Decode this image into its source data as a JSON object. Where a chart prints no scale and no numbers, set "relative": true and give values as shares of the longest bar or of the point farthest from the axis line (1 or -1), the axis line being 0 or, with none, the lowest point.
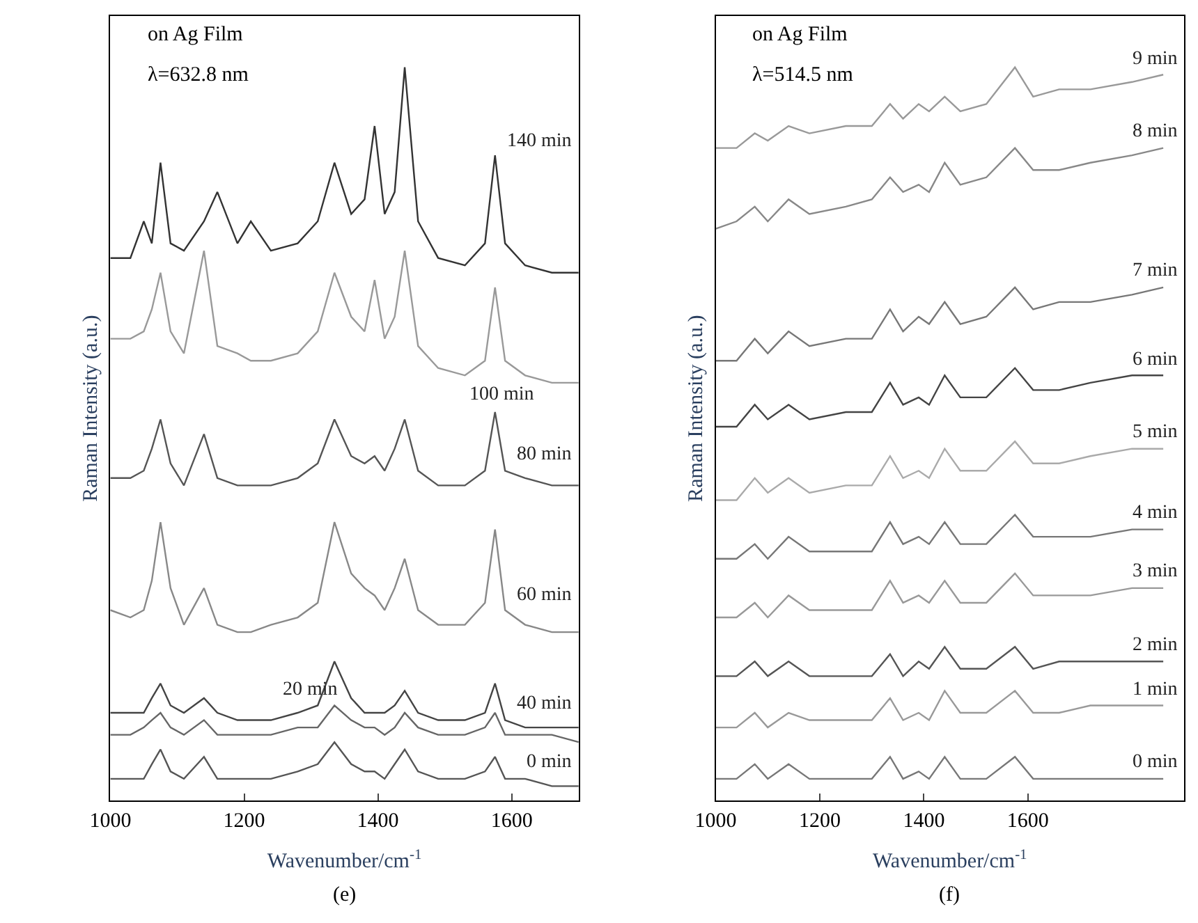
{
  "chart_data": [
    {
      "type": "line",
      "relative": true,
      "xlabel": "Wavenumber/cm$^{-1}$",
      "ylabel": "Raman Intensity (a.u.)",
      "annotations": [
        "on Ag Film",
        "λ=632.8 nm",
        "(e)"
      ],
      "xlim": [
        1000,
        1700
      ],
      "xticks": [
        1000,
        1200,
        1400,
        1600
      ],
      "legend": false,
      "marker": "none",
      "line_style": "solid",
      "x": [
        1000,
        1030,
        1050,
        1062,
        1075,
        1090,
        1110,
        1140,
        1160,
        1190,
        1210,
        1240,
        1280,
        1310,
        1335,
        1360,
        1380,
        1395,
        1410,
        1425,
        1440,
        1460,
        1490,
        1530,
        1560,
        1575,
        1590,
        1620,
        1660,
        1700
      ],
      "series": [
        {
          "name": "0 min",
          "color": "#555555",
          "values": [
            0.03,
            0.03,
            0.03,
            0.05,
            0.07,
            0.04,
            0.03,
            0.06,
            0.03,
            0.03,
            0.03,
            0.03,
            0.04,
            0.05,
            0.08,
            0.05,
            0.04,
            0.04,
            0.03,
            0.05,
            0.07,
            0.04,
            0.03,
            0.03,
            0.04,
            0.06,
            0.03,
            0.03,
            0.02,
            0.02
          ]
        },
        {
          "name": "20 min",
          "color": "#666666",
          "values": [
            0.09,
            0.09,
            0.1,
            0.11,
            0.12,
            0.1,
            0.09,
            0.11,
            0.09,
            0.09,
            0.09,
            0.09,
            0.1,
            0.1,
            0.13,
            0.11,
            0.1,
            0.1,
            0.09,
            0.1,
            0.12,
            0.1,
            0.09,
            0.09,
            0.1,
            0.12,
            0.09,
            0.09,
            0.09,
            0.08
          ]
        },
        {
          "name": "40 min",
          "color": "#444444",
          "values": [
            0.12,
            0.12,
            0.12,
            0.14,
            0.16,
            0.13,
            0.12,
            0.14,
            0.12,
            0.11,
            0.11,
            0.11,
            0.12,
            0.13,
            0.19,
            0.14,
            0.12,
            0.12,
            0.12,
            0.13,
            0.15,
            0.12,
            0.11,
            0.11,
            0.12,
            0.16,
            0.11,
            0.1,
            0.1,
            0.1
          ]
        },
        {
          "name": "60 min",
          "color": "#888888",
          "values": [
            0.26,
            0.25,
            0.26,
            0.3,
            0.38,
            0.29,
            0.24,
            0.29,
            0.24,
            0.23,
            0.23,
            0.24,
            0.25,
            0.27,
            0.38,
            0.31,
            0.29,
            0.28,
            0.26,
            0.29,
            0.33,
            0.26,
            0.24,
            0.24,
            0.27,
            0.37,
            0.26,
            0.24,
            0.23,
            0.23
          ]
        },
        {
          "name": "80 min",
          "color": "#555555",
          "values": [
            0.44,
            0.44,
            0.45,
            0.48,
            0.52,
            0.46,
            0.43,
            0.5,
            0.44,
            0.43,
            0.43,
            0.43,
            0.44,
            0.46,
            0.52,
            0.47,
            0.46,
            0.47,
            0.45,
            0.48,
            0.52,
            0.45,
            0.43,
            0.43,
            0.45,
            0.53,
            0.45,
            0.44,
            0.43,
            0.43
          ]
        },
        {
          "name": "100 min",
          "color": "#999999",
          "values": [
            0.63,
            0.63,
            0.64,
            0.67,
            0.72,
            0.64,
            0.61,
            0.75,
            0.62,
            0.61,
            0.6,
            0.6,
            0.61,
            0.64,
            0.72,
            0.66,
            0.64,
            0.71,
            0.63,
            0.66,
            0.75,
            0.62,
            0.59,
            0.58,
            0.6,
            0.7,
            0.6,
            0.58,
            0.57,
            0.57
          ]
        },
        {
          "name": "140 min",
          "color": "#333333",
          "values": [
            0.74,
            0.74,
            0.79,
            0.76,
            0.87,
            0.76,
            0.75,
            0.79,
            0.83,
            0.76,
            0.79,
            0.75,
            0.76,
            0.79,
            0.87,
            0.8,
            0.82,
            0.92,
            0.8,
            0.83,
            1.0,
            0.79,
            0.74,
            0.73,
            0.76,
            0.88,
            0.76,
            0.73,
            0.72,
            0.72
          ]
        }
      ]
    },
    {
      "type": "line",
      "relative": true,
      "xlabel": "Wavenumber/cm$^{-1}$",
      "ylabel": "Raman Intensity (a.u.)",
      "annotations": [
        "on Ag Film",
        "λ=514.5 nm",
        "(f)"
      ],
      "xlim": [
        1000,
        1900
      ],
      "xticks": [
        1000,
        1200,
        1400,
        1600
      ],
      "legend": false,
      "marker": "none",
      "line_style": "solid",
      "x": [
        1000,
        1040,
        1075,
        1100,
        1140,
        1180,
        1250,
        1300,
        1335,
        1360,
        1390,
        1410,
        1440,
        1470,
        1520,
        1575,
        1610,
        1660,
        1720,
        1800,
        1860
      ],
      "series": [
        {
          "name": "0 min",
          "color": "#777777",
          "values": [
            0.03,
            0.03,
            0.05,
            0.03,
            0.05,
            0.03,
            0.03,
            0.03,
            0.06,
            0.03,
            0.04,
            0.03,
            0.06,
            0.03,
            0.03,
            0.06,
            0.03,
            0.03,
            0.03,
            0.03,
            0.03
          ]
        },
        {
          "name": "1 min",
          "color": "#999999",
          "values": [
            0.1,
            0.1,
            0.12,
            0.1,
            0.12,
            0.11,
            0.11,
            0.11,
            0.14,
            0.11,
            0.12,
            0.11,
            0.15,
            0.12,
            0.12,
            0.15,
            0.12,
            0.12,
            0.13,
            0.13,
            0.13
          ]
        },
        {
          "name": "2 min",
          "color": "#555555",
          "values": [
            0.17,
            0.17,
            0.19,
            0.17,
            0.19,
            0.17,
            0.17,
            0.17,
            0.2,
            0.17,
            0.19,
            0.18,
            0.21,
            0.18,
            0.18,
            0.21,
            0.18,
            0.19,
            0.19,
            0.19,
            0.19
          ]
        },
        {
          "name": "3 min",
          "color": "#999999",
          "values": [
            0.25,
            0.25,
            0.27,
            0.25,
            0.28,
            0.26,
            0.26,
            0.26,
            0.3,
            0.27,
            0.28,
            0.27,
            0.3,
            0.27,
            0.27,
            0.31,
            0.28,
            0.28,
            0.28,
            0.29,
            0.29
          ]
        },
        {
          "name": "4 min",
          "color": "#777777",
          "values": [
            0.33,
            0.33,
            0.35,
            0.33,
            0.36,
            0.34,
            0.34,
            0.34,
            0.38,
            0.35,
            0.36,
            0.35,
            0.38,
            0.35,
            0.35,
            0.39,
            0.36,
            0.36,
            0.36,
            0.37,
            0.37
          ]
        },
        {
          "name": "5 min",
          "color": "#aaaaaa",
          "values": [
            0.41,
            0.41,
            0.44,
            0.42,
            0.44,
            0.42,
            0.43,
            0.43,
            0.47,
            0.44,
            0.45,
            0.44,
            0.48,
            0.45,
            0.45,
            0.49,
            0.46,
            0.46,
            0.47,
            0.48,
            0.48
          ]
        },
        {
          "name": "6 min",
          "color": "#444444",
          "values": [
            0.51,
            0.51,
            0.54,
            0.52,
            0.54,
            0.52,
            0.53,
            0.53,
            0.57,
            0.54,
            0.55,
            0.54,
            0.58,
            0.55,
            0.55,
            0.59,
            0.56,
            0.56,
            0.57,
            0.58,
            0.58
          ]
        },
        {
          "name": "7 min",
          "color": "#777777",
          "values": [
            0.6,
            0.6,
            0.63,
            0.61,
            0.64,
            0.62,
            0.63,
            0.63,
            0.67,
            0.64,
            0.66,
            0.65,
            0.68,
            0.65,
            0.66,
            0.7,
            0.67,
            0.68,
            0.68,
            0.69,
            0.7
          ]
        },
        {
          "name": "8 min",
          "color": "#888888",
          "values": [
            0.78,
            0.79,
            0.81,
            0.79,
            0.82,
            0.8,
            0.81,
            0.82,
            0.85,
            0.83,
            0.84,
            0.83,
            0.87,
            0.84,
            0.85,
            0.89,
            0.86,
            0.86,
            0.87,
            0.88,
            0.89
          ]
        },
        {
          "name": "9 min",
          "color": "#999999",
          "values": [
            0.89,
            0.89,
            0.91,
            0.9,
            0.92,
            0.91,
            0.92,
            0.92,
            0.95,
            0.93,
            0.95,
            0.94,
            0.96,
            0.94,
            0.95,
            1.0,
            0.96,
            0.97,
            0.97,
            0.98,
            0.99
          ]
        }
      ]
    }
  ]
}
